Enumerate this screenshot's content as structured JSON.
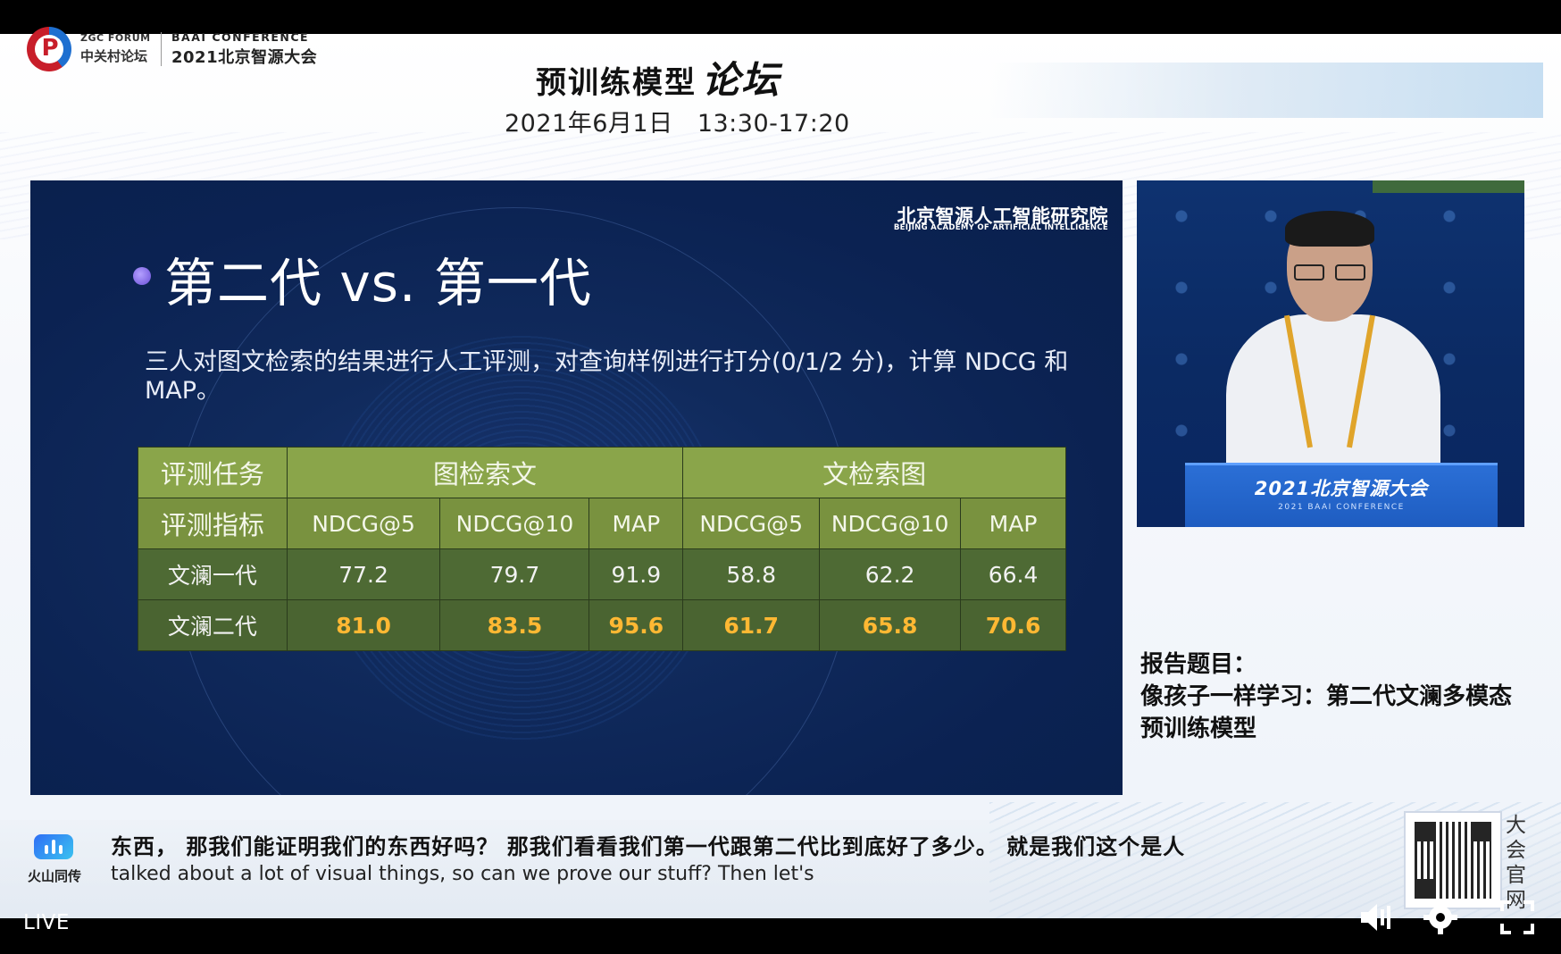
{
  "header": {
    "zgc_en": "ZGC FORUM",
    "zgc_cn": "中关村论坛",
    "baai_en": "BAAI CONFERENCE",
    "baai_cn": "2021北京智源大会",
    "forum_title_main": "预训练模型",
    "forum_title_em": "论坛",
    "forum_date": "2021年6月1日   13:30-17:20"
  },
  "slide": {
    "institute_cn": "北京智源人工智能研究院",
    "institute_en": "BEIJING ACADEMY OF ARTIFICIAL INTELLIGENCE",
    "title": "第二代 vs. 第一代",
    "description": "三人对图文检索的结果进行人工评测，对查询样例进行打分(0/1/2 分)，计算 NDCG 和 MAP。",
    "table": {
      "task_label": "评测任务",
      "metric_label": "评测指标",
      "group1": "图检索文",
      "group2": "文检索图",
      "metrics": [
        "NDCG@5",
        "NDCG@10",
        "MAP",
        "NDCG@5",
        "NDCG@10",
        "MAP"
      ],
      "rows": [
        {
          "name": "文澜一代",
          "values": [
            "77.2",
            "79.7",
            "91.9",
            "58.8",
            "62.2",
            "66.4"
          ]
        },
        {
          "name": "文澜二代",
          "values": [
            "81.0",
            "83.5",
            "95.6",
            "61.7",
            "65.8",
            "70.6"
          ]
        }
      ]
    }
  },
  "camera": {
    "podium_cn": "2021北京智源大会",
    "podium_en": "2021 BAAI CONFERENCE"
  },
  "report": {
    "label": "报告题目：",
    "title": "像孩子一样学习：第二代文澜多模态预训练模型"
  },
  "subtitle": {
    "brand": "火山同传",
    "cn": "东西， 那我们能证明我们的东西好吗？ 那我们看看我们第一代跟第二代比到底好了多少。 就是我们这个是人",
    "en": "talked about a lot of visual things, so can we prove our stuff? Then let's"
  },
  "qr_side": "大会官网",
  "player": {
    "live": "LIVE",
    "icons": [
      "volume-icon",
      "settings-icon",
      "fullscreen-icon"
    ]
  }
}
